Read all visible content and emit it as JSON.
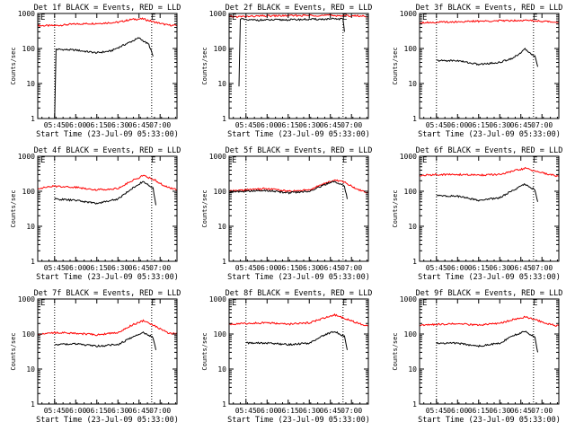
{
  "colors": {
    "events": "#000000",
    "lld": "#ff0000",
    "axes": "#000000",
    "background": "#ffffff"
  },
  "common": {
    "xlabel": "Start Time (23-Jul-09 05:33:00)",
    "ylabel": "Counts/sec",
    "x_ticks": [
      "05:45",
      "06:00",
      "06:15",
      "06:30",
      "06:45",
      "07:00"
    ],
    "y_ticks": [
      "1",
      "10",
      "100",
      "1000"
    ],
    "marker_e": "E"
  },
  "chart_data": [
    {
      "type": "line",
      "title": "Det 1f BLACK = Events, RED = LLD",
      "xlabel": "Start Time (23-Jul-09 05:33:00)",
      "ylabel": "Counts/sec",
      "yscale": "log",
      "ylim": [
        1,
        1000
      ],
      "xlim": [
        "05:33",
        "07:12"
      ],
      "grid": false,
      "vlines": [
        "05:45",
        "06:54"
      ],
      "series": [
        {
          "color": "#ff0000",
          "x": [
            "05:33",
            "05:45",
            "06:00",
            "06:15",
            "06:30",
            "06:40",
            "06:48",
            "06:55",
            "07:05",
            "07:12"
          ],
          "y": [
            450,
            450,
            500,
            520,
            560,
            680,
            700,
            580,
            470,
            450
          ]
        },
        {
          "color": "#000000",
          "x": [
            "05:45",
            "05:46",
            "06:00",
            "06:15",
            "06:25",
            "06:35",
            "06:45",
            "06:52",
            "06:55"
          ],
          "y": [
            1,
            95,
            90,
            75,
            85,
            130,
            200,
            130,
            60
          ]
        }
      ]
    },
    {
      "type": "line",
      "title": "Det 2f BLACK = Events, RED = LLD",
      "xlabel": "Start Time (23-Jul-09 05:33:00)",
      "ylabel": "Counts/sec",
      "yscale": "log",
      "ylim": [
        1,
        1000
      ],
      "xlim": [
        "05:33",
        "07:12"
      ],
      "grid": false,
      "vlines": [
        "05:45",
        "06:54"
      ],
      "series": [
        {
          "color": "#ff0000",
          "x": [
            "05:33",
            "05:45",
            "06:00",
            "06:15",
            "06:30",
            "06:45",
            "06:55",
            "07:05",
            "07:12"
          ],
          "y": [
            800,
            820,
            850,
            860,
            880,
            880,
            860,
            850,
            830
          ]
        },
        {
          "color": "#000000",
          "x": [
            "05:40",
            "05:41",
            "05:45",
            "06:00",
            "06:15",
            "06:30",
            "06:45",
            "06:54",
            "06:55"
          ],
          "y": [
            8,
            700,
            650,
            650,
            660,
            680,
            690,
            700,
            300
          ]
        }
      ]
    },
    {
      "type": "line",
      "title": "Det 3f BLACK = Events, RED = LLD",
      "xlabel": "Start Time (23-Jul-09 05:33:00)",
      "ylabel": "Counts/sec",
      "yscale": "log",
      "ylim": [
        1,
        1000
      ],
      "xlim": [
        "05:33",
        "07:12"
      ],
      "grid": false,
      "vlines": [
        "05:45",
        "06:54"
      ],
      "series": [
        {
          "color": "#ff0000",
          "x": [
            "05:33",
            "05:45",
            "06:00",
            "06:15",
            "06:30",
            "06:45",
            "06:55",
            "07:05",
            "07:12"
          ],
          "y": [
            550,
            560,
            580,
            600,
            620,
            640,
            620,
            580,
            560
          ]
        },
        {
          "color": "#000000",
          "x": [
            "05:45",
            "06:00",
            "06:15",
            "06:30",
            "06:40",
            "06:48",
            "06:55",
            "06:57"
          ],
          "y": [
            45,
            45,
            35,
            40,
            55,
            95,
            60,
            30
          ]
        }
      ]
    },
    {
      "type": "line",
      "title": "Det 4f BLACK = Events, RED = LLD",
      "xlabel": "Start Time (23-Jul-09 05:33:00)",
      "ylabel": "Counts/sec",
      "yscale": "log",
      "ylim": [
        1,
        1000
      ],
      "xlim": [
        "05:33",
        "07:12"
      ],
      "grid": false,
      "vlines": [
        "05:45",
        "06:54"
      ],
      "series": [
        {
          "color": "#ff0000",
          "x": [
            "05:33",
            "05:45",
            "06:00",
            "06:15",
            "06:30",
            "06:40",
            "06:48",
            "06:55",
            "07:05",
            "07:12"
          ],
          "y": [
            120,
            140,
            130,
            110,
            120,
            200,
            280,
            220,
            130,
            110
          ]
        },
        {
          "color": "#000000",
          "x": [
            "05:45",
            "06:00",
            "06:15",
            "06:30",
            "06:40",
            "06:48",
            "06:55",
            "06:57"
          ],
          "y": [
            60,
            55,
            45,
            60,
            120,
            190,
            120,
            40
          ]
        }
      ]
    },
    {
      "type": "line",
      "title": "Det 5f BLACK = Events, RED = LLD",
      "xlabel": "Start Time (23-Jul-09 05:33:00)",
      "ylabel": "Counts/sec",
      "yscale": "log",
      "ylim": [
        1,
        1000
      ],
      "xlim": [
        "05:33",
        "07:12"
      ],
      "grid": false,
      "vlines": [
        "05:45",
        "06:54"
      ],
      "series": [
        {
          "color": "#ff0000",
          "x": [
            "05:33",
            "05:45",
            "06:00",
            "06:15",
            "06:30",
            "06:40",
            "06:48",
            "06:55",
            "07:05",
            "07:12"
          ],
          "y": [
            100,
            110,
            120,
            100,
            110,
            160,
            210,
            180,
            110,
            90
          ]
        },
        {
          "color": "#000000",
          "x": [
            "05:33",
            "05:45",
            "06:00",
            "06:15",
            "06:30",
            "06:40",
            "06:48",
            "06:55",
            "06:57"
          ],
          "y": [
            95,
            100,
            105,
            90,
            100,
            150,
            190,
            140,
            60
          ]
        }
      ]
    },
    {
      "type": "line",
      "title": "Det 6f BLACK = Events, RED = LLD",
      "xlabel": "Start Time (23-Jul-09 05:33:00)",
      "ylabel": "Counts/sec",
      "yscale": "log",
      "ylim": [
        1,
        1000
      ],
      "xlim": [
        "05:33",
        "07:12"
      ],
      "grid": false,
      "vlines": [
        "05:45",
        "06:54"
      ],
      "series": [
        {
          "color": "#ff0000",
          "x": [
            "05:33",
            "05:45",
            "06:00",
            "06:15",
            "06:30",
            "06:40",
            "06:48",
            "06:55",
            "07:05",
            "07:12"
          ],
          "y": [
            280,
            300,
            300,
            290,
            300,
            380,
            450,
            380,
            300,
            270
          ]
        },
        {
          "color": "#000000",
          "x": [
            "05:45",
            "06:00",
            "06:15",
            "06:30",
            "06:40",
            "06:48",
            "06:55",
            "06:57"
          ],
          "y": [
            75,
            72,
            55,
            65,
            110,
            160,
            110,
            50
          ]
        }
      ]
    },
    {
      "type": "line",
      "title": "Det 7f BLACK = Events, RED = LLD",
      "xlabel": "Start Time (23-Jul-09 05:33:00)",
      "ylabel": "Counts/sec",
      "yscale": "log",
      "ylim": [
        1,
        1000
      ],
      "xlim": [
        "05:33",
        "07:12"
      ],
      "grid": false,
      "vlines": [
        "05:45",
        "06:54"
      ],
      "series": [
        {
          "color": "#ff0000",
          "x": [
            "05:33",
            "05:45",
            "06:00",
            "06:15",
            "06:30",
            "06:40",
            "06:48",
            "06:55",
            "07:05",
            "07:12"
          ],
          "y": [
            100,
            110,
            105,
            95,
            110,
            180,
            240,
            180,
            110,
            100
          ]
        },
        {
          "color": "#000000",
          "x": [
            "05:45",
            "06:00",
            "06:15",
            "06:30",
            "06:40",
            "06:48",
            "06:55",
            "06:57"
          ],
          "y": [
            50,
            52,
            45,
            50,
            80,
            110,
            80,
            35
          ]
        }
      ]
    },
    {
      "type": "line",
      "title": "Det 8f BLACK = Events, RED = LLD",
      "xlabel": "Start Time (23-Jul-09 05:33:00)",
      "ylabel": "Counts/sec",
      "yscale": "log",
      "ylim": [
        1,
        1000
      ],
      "xlim": [
        "05:33",
        "07:12"
      ],
      "grid": false,
      "vlines": [
        "05:45",
        "06:54"
      ],
      "series": [
        {
          "color": "#ff0000",
          "x": [
            "05:33",
            "05:45",
            "06:00",
            "06:15",
            "06:30",
            "06:40",
            "06:48",
            "06:55",
            "07:05",
            "07:12"
          ],
          "y": [
            190,
            200,
            210,
            190,
            210,
            280,
            350,
            280,
            200,
            170
          ]
        },
        {
          "color": "#000000",
          "x": [
            "05:45",
            "06:00",
            "06:15",
            "06:30",
            "06:40",
            "06:48",
            "06:55",
            "06:57"
          ],
          "y": [
            55,
            55,
            50,
            55,
            90,
            120,
            85,
            35
          ]
        }
      ]
    },
    {
      "type": "line",
      "title": "Det 9f BLACK = Events, RED = LLD",
      "xlabel": "Start Time (23-Jul-09 05:33:00)",
      "ylabel": "Counts/sec",
      "yscale": "log",
      "ylim": [
        1,
        1000
      ],
      "xlim": [
        "05:33",
        "07:12"
      ],
      "grid": false,
      "vlines": [
        "05:45",
        "06:54"
      ],
      "series": [
        {
          "color": "#ff0000",
          "x": [
            "05:33",
            "05:45",
            "06:00",
            "06:15",
            "06:30",
            "06:40",
            "06:48",
            "06:55",
            "07:05",
            "07:12"
          ],
          "y": [
            180,
            190,
            195,
            180,
            200,
            260,
            310,
            260,
            190,
            170
          ]
        },
        {
          "color": "#000000",
          "x": [
            "05:45",
            "06:00",
            "06:15",
            "06:30",
            "06:40",
            "06:48",
            "06:55",
            "06:57"
          ],
          "y": [
            55,
            55,
            45,
            55,
            90,
            120,
            80,
            30
          ]
        }
      ]
    }
  ]
}
